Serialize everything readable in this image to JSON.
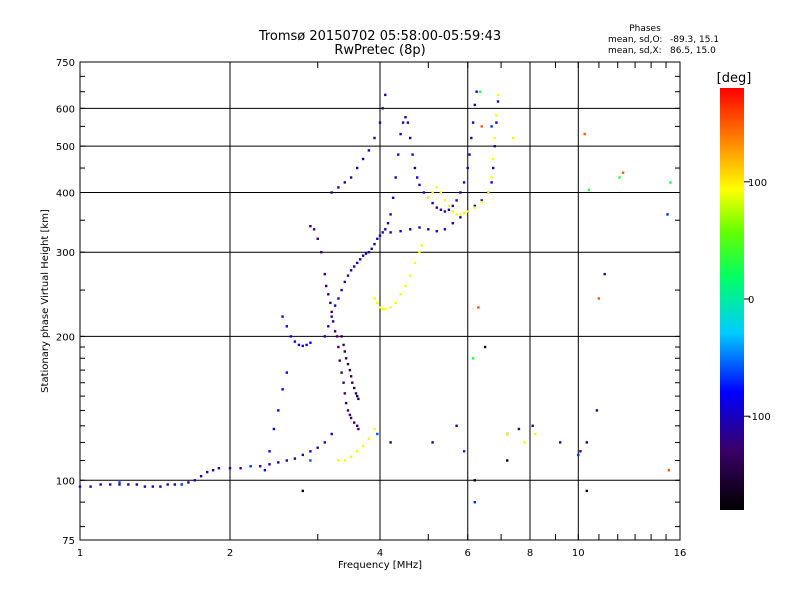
{
  "chart_data": {
    "type": "scatter",
    "title": "Tromsø 20150702 05:58:00-05:59:43",
    "subtitle": "RwPretec (8p)",
    "stats": {
      "heading": "Phases",
      "o_label": "mean, sd,O:",
      "o_values": "-89.3, 15.1",
      "x_label": "mean, sd,X:",
      "x_values": "86.5, 15.0"
    },
    "xlabel": "Frequency [MHz]",
    "ylabel": "Stationary phase Virtual Height [km]",
    "xscale": "log",
    "yscale": "log",
    "xlim": [
      1,
      16
    ],
    "ylim": [
      75,
      750
    ],
    "xticks": [
      1,
      2,
      4,
      6,
      8,
      10,
      16
    ],
    "yticks": [
      75,
      100,
      200,
      300,
      400,
      500,
      600,
      750
    ],
    "grid": true,
    "colorbar": {
      "label": "[deg]",
      "ticks": [
        100,
        0,
        -100
      ],
      "range": [
        -180,
        180
      ],
      "placement": "right"
    },
    "series": [
      {
        "phase": -110,
        "points": [
          [
            1.0,
            97
          ],
          [
            1.05,
            97
          ],
          [
            1.1,
            98
          ],
          [
            1.15,
            98
          ],
          [
            1.2,
            98
          ],
          [
            1.25,
            98
          ],
          [
            1.3,
            98
          ],
          [
            1.35,
            97
          ],
          [
            1.4,
            97
          ],
          [
            1.45,
            97
          ],
          [
            1.5,
            98
          ],
          [
            1.55,
            98
          ],
          [
            1.6,
            98
          ],
          [
            1.65,
            99
          ],
          [
            1.7,
            100
          ],
          [
            1.75,
            102
          ],
          [
            1.8,
            104
          ],
          [
            1.85,
            105
          ],
          [
            1.9,
            106
          ],
          [
            2.0,
            106
          ],
          [
            2.1,
            106
          ],
          [
            2.2,
            107
          ],
          [
            2.3,
            107
          ],
          [
            2.4,
            108
          ],
          [
            2.5,
            109
          ],
          [
            2.6,
            110
          ],
          [
            2.7,
            111
          ],
          [
            2.8,
            113
          ],
          [
            2.9,
            115
          ],
          [
            3.0,
            117
          ],
          [
            3.1,
            120
          ],
          [
            3.2,
            125
          ]
        ]
      },
      {
        "phase": -130,
        "points": [
          [
            2.9,
            340
          ],
          [
            2.95,
            335
          ],
          [
            3.0,
            320
          ],
          [
            3.05,
            300
          ],
          [
            3.1,
            270
          ],
          [
            3.12,
            255
          ],
          [
            3.15,
            245
          ],
          [
            3.18,
            235
          ],
          [
            3.2,
            225
          ],
          [
            3.22,
            215
          ],
          [
            3.25,
            205
          ],
          [
            3.28,
            200
          ],
          [
            3.3,
            190
          ],
          [
            3.32,
            178
          ],
          [
            3.35,
            168
          ],
          [
            3.38,
            160
          ],
          [
            3.4,
            152
          ],
          [
            3.42,
            145
          ],
          [
            3.45,
            140
          ],
          [
            3.48,
            137
          ],
          [
            3.5,
            135
          ],
          [
            3.55,
            132
          ],
          [
            3.6,
            130
          ],
          [
            3.62,
            128
          ]
        ]
      },
      {
        "phase": -140,
        "points": [
          [
            3.35,
            200
          ],
          [
            3.38,
            192
          ],
          [
            3.4,
            186
          ],
          [
            3.42,
            180
          ],
          [
            3.45,
            175
          ],
          [
            3.48,
            170
          ],
          [
            3.5,
            165
          ],
          [
            3.52,
            160
          ],
          [
            3.55,
            156
          ],
          [
            3.58,
            152
          ],
          [
            3.6,
            150
          ],
          [
            3.62,
            148
          ]
        ]
      },
      {
        "phase": -105,
        "points": [
          [
            3.1,
            200
          ],
          [
            3.15,
            210
          ],
          [
            3.2,
            220
          ],
          [
            3.25,
            232
          ],
          [
            3.3,
            240
          ],
          [
            3.35,
            250
          ],
          [
            3.4,
            260
          ],
          [
            3.45,
            268
          ],
          [
            3.5,
            275
          ],
          [
            3.55,
            280
          ],
          [
            3.6,
            285
          ],
          [
            3.65,
            290
          ],
          [
            3.7,
            295
          ],
          [
            3.75,
            298
          ],
          [
            3.8,
            300
          ],
          [
            3.85,
            305
          ],
          [
            3.9,
            312
          ],
          [
            3.95,
            320
          ],
          [
            4.0,
            325
          ],
          [
            4.05,
            330
          ],
          [
            4.1,
            335
          ],
          [
            4.15,
            345
          ],
          [
            4.2,
            360
          ],
          [
            4.25,
            390
          ],
          [
            4.3,
            430
          ],
          [
            4.35,
            480
          ],
          [
            4.4,
            530
          ],
          [
            4.45,
            560
          ],
          [
            4.5,
            575
          ],
          [
            4.55,
            560
          ],
          [
            4.6,
            520
          ],
          [
            4.65,
            480
          ],
          [
            4.7,
            450
          ],
          [
            4.75,
            430
          ],
          [
            4.8,
            415
          ],
          [
            4.9,
            400
          ],
          [
            5.0,
            390
          ],
          [
            5.1,
            380
          ],
          [
            5.2,
            372
          ],
          [
            5.3,
            368
          ],
          [
            5.4,
            365
          ],
          [
            5.5,
            368
          ],
          [
            5.6,
            375
          ],
          [
            5.7,
            385
          ],
          [
            5.8,
            400
          ],
          [
            5.9,
            420
          ],
          [
            6.0,
            450
          ],
          [
            6.05,
            480
          ],
          [
            6.1,
            520
          ],
          [
            6.15,
            560
          ],
          [
            6.2,
            610
          ],
          [
            6.25,
            650
          ]
        ]
      },
      {
        "phase": -100,
        "points": [
          [
            4.2,
            330
          ],
          [
            4.4,
            332
          ],
          [
            4.6,
            335
          ],
          [
            4.8,
            338
          ],
          [
            5.0,
            335
          ],
          [
            5.2,
            332
          ],
          [
            5.4,
            335
          ],
          [
            5.6,
            345
          ],
          [
            5.8,
            355
          ],
          [
            6.0,
            365
          ],
          [
            6.2,
            375
          ],
          [
            6.4,
            385
          ],
          [
            6.6,
            400
          ],
          [
            6.7,
            420
          ],
          [
            6.75,
            450
          ],
          [
            6.8,
            500
          ],
          [
            6.85,
            560
          ],
          [
            6.9,
            620
          ]
        ]
      },
      {
        "phase": -115,
        "points": [
          [
            3.2,
            400
          ],
          [
            3.3,
            410
          ],
          [
            3.4,
            420
          ],
          [
            3.5,
            430
          ],
          [
            3.6,
            450
          ],
          [
            3.7,
            470
          ],
          [
            3.8,
            490
          ],
          [
            3.9,
            520
          ],
          [
            4.0,
            560
          ],
          [
            4.05,
            600
          ],
          [
            4.1,
            640
          ]
        ]
      },
      {
        "phase": -85,
        "points": [
          [
            2.55,
            220
          ],
          [
            2.6,
            210
          ],
          [
            2.65,
            200
          ],
          [
            2.7,
            195
          ],
          [
            2.75,
            192
          ],
          [
            2.8,
            191
          ],
          [
            2.85,
            192
          ],
          [
            2.9,
            194
          ]
        ]
      },
      {
        "phase": -80,
        "points": [
          [
            2.35,
            105
          ],
          [
            2.4,
            115
          ],
          [
            2.45,
            128
          ],
          [
            2.5,
            140
          ],
          [
            2.55,
            155
          ],
          [
            2.6,
            168
          ]
        ]
      },
      {
        "phase": 95,
        "points": [
          [
            3.9,
            240
          ],
          [
            3.95,
            235
          ],
          [
            4.0,
            230
          ],
          [
            4.05,
            228
          ],
          [
            4.1,
            228
          ],
          [
            4.2,
            230
          ],
          [
            4.3,
            235
          ],
          [
            4.4,
            245
          ],
          [
            4.5,
            255
          ],
          [
            4.6,
            268
          ],
          [
            4.7,
            285
          ],
          [
            4.8,
            300
          ],
          [
            4.85,
            310
          ]
        ]
      },
      {
        "phase": 95,
        "points": [
          [
            5.0,
            390
          ],
          [
            5.1,
            400
          ],
          [
            5.2,
            410
          ],
          [
            5.3,
            400
          ],
          [
            5.4,
            385
          ],
          [
            5.5,
            375
          ],
          [
            5.6,
            365
          ],
          [
            5.7,
            360
          ],
          [
            5.8,
            360
          ],
          [
            5.9,
            362
          ],
          [
            6.0,
            365
          ],
          [
            6.2,
            372
          ],
          [
            6.4,
            382
          ],
          [
            6.6,
            400
          ],
          [
            6.7,
            430
          ],
          [
            6.75,
            470
          ],
          [
            6.8,
            520
          ],
          [
            6.85,
            580
          ],
          [
            6.9,
            640
          ]
        ]
      },
      {
        "phase": 92,
        "points": [
          [
            3.4,
            110
          ],
          [
            3.5,
            112
          ],
          [
            3.6,
            115
          ],
          [
            3.7,
            118
          ],
          [
            3.8,
            122
          ],
          [
            3.9,
            128
          ]
        ]
      },
      {
        "phase": -60,
        "points": [
          [
            1.2,
            99
          ],
          [
            1.6,
            98
          ],
          [
            2.2,
            107
          ],
          [
            2.9,
            110
          ],
          [
            3.95,
            125
          ]
        ]
      },
      {
        "phase": 150,
        "points": [
          [
            6.2,
            100
          ],
          [
            6.3,
            230
          ],
          [
            6.4,
            550
          ],
          [
            10.3,
            530
          ],
          [
            11.0,
            240
          ],
          [
            12.3,
            440
          ],
          [
            15.2,
            105
          ]
        ]
      },
      {
        "phase": 30,
        "points": [
          [
            6.15,
            180
          ],
          [
            6.35,
            650
          ],
          [
            15.3,
            420
          ],
          [
            12.1,
            430
          ],
          [
            10.5,
            405
          ]
        ]
      },
      {
        "phase": -120,
        "points": [
          [
            5.7,
            130
          ],
          [
            7.2,
            125
          ],
          [
            7.6,
            128
          ],
          [
            8.1,
            130
          ],
          [
            9.2,
            120
          ],
          [
            10.4,
            120
          ],
          [
            10.9,
            140
          ],
          [
            11.3,
            270
          ],
          [
            4.2,
            120
          ],
          [
            5.1,
            120
          ],
          [
            10.1,
            115
          ]
        ]
      },
      {
        "phase": -170,
        "points": [
          [
            6.5,
            190
          ],
          [
            10.4,
            95
          ],
          [
            2.8,
            95
          ],
          [
            6.2,
            100
          ],
          [
            7.2,
            110
          ]
        ]
      },
      {
        "phase": -70,
        "points": [
          [
            6.2,
            90
          ],
          [
            5.9,
            115
          ],
          [
            10.0,
            113
          ],
          [
            15.1,
            360
          ],
          [
            6.7,
            550
          ]
        ]
      },
      {
        "phase": 90,
        "points": [
          [
            7.2,
            125
          ],
          [
            7.8,
            120
          ],
          [
            8.2,
            125
          ],
          [
            3.3,
            110
          ],
          [
            7.4,
            520
          ]
        ]
      }
    ]
  }
}
